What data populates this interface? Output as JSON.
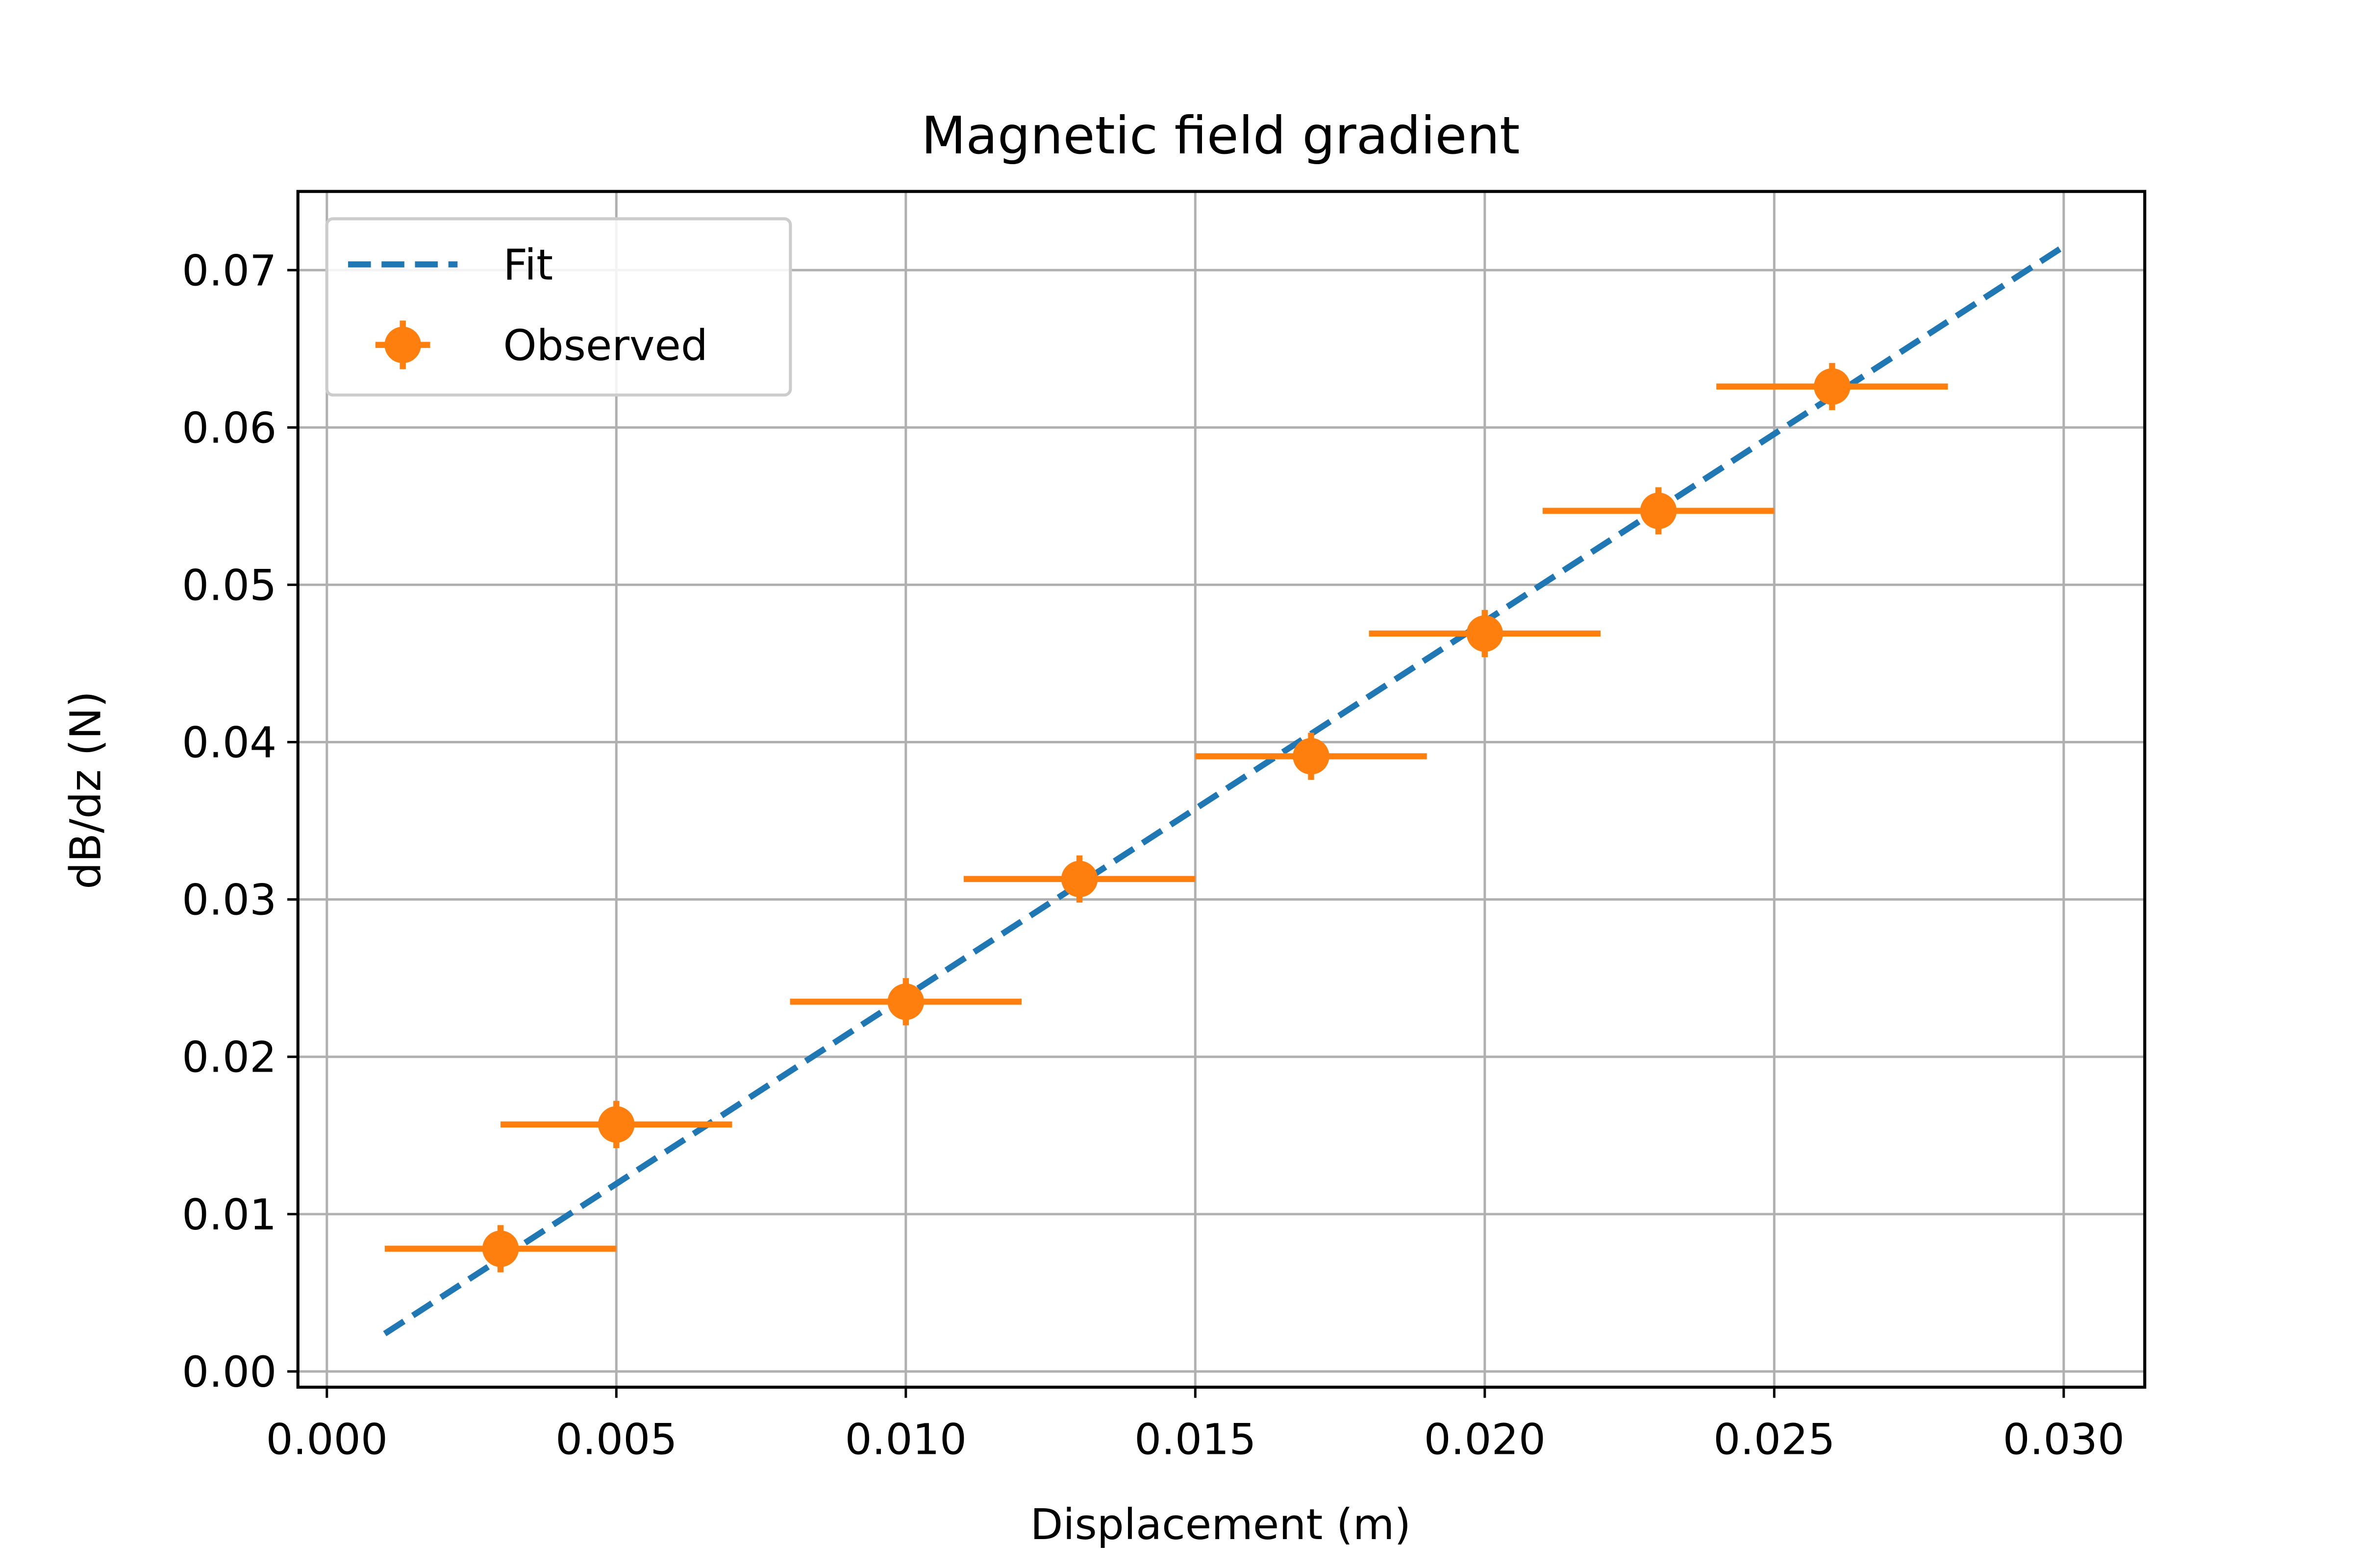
{
  "chart_data": {
    "type": "scatter",
    "title": "Magnetic field gradient",
    "xlabel": "Displacement (m)",
    "ylabel": "dB/dz (N)",
    "xlim": [
      -0.0005,
      0.0314
    ],
    "ylim": [
      -0.001,
      0.075
    ],
    "xticks": [
      "0.000",
      "0.005",
      "0.010",
      "0.015",
      "0.020",
      "0.025",
      "0.030"
    ],
    "yticks": [
      "0.00",
      "0.01",
      "0.02",
      "0.03",
      "0.04",
      "0.05",
      "0.06",
      "0.07"
    ],
    "grid": true,
    "legend_position": "top-left",
    "series": [
      {
        "name": "Fit",
        "kind": "line",
        "style": "dashed",
        "color": "#1f77b4",
        "x": [
          0.001,
          0.03
        ],
        "y": [
          0.0024,
          0.0715
        ]
      },
      {
        "name": "Observed",
        "kind": "errorbar",
        "color": "#ff7f0e",
        "x": [
          0.003,
          0.005,
          0.01,
          0.013,
          0.017,
          0.02,
          0.023,
          0.026
        ],
        "y": [
          0.0078,
          0.0157,
          0.0235,
          0.0313,
          0.0391,
          0.0469,
          0.0547,
          0.0626
        ],
        "xerr": [
          0.002,
          0.002,
          0.002,
          0.002,
          0.002,
          0.002,
          0.002,
          0.002
        ],
        "yerr": [
          0.0015,
          0.0015,
          0.0015,
          0.0015,
          0.0015,
          0.0015,
          0.0015,
          0.0015
        ]
      }
    ]
  }
}
